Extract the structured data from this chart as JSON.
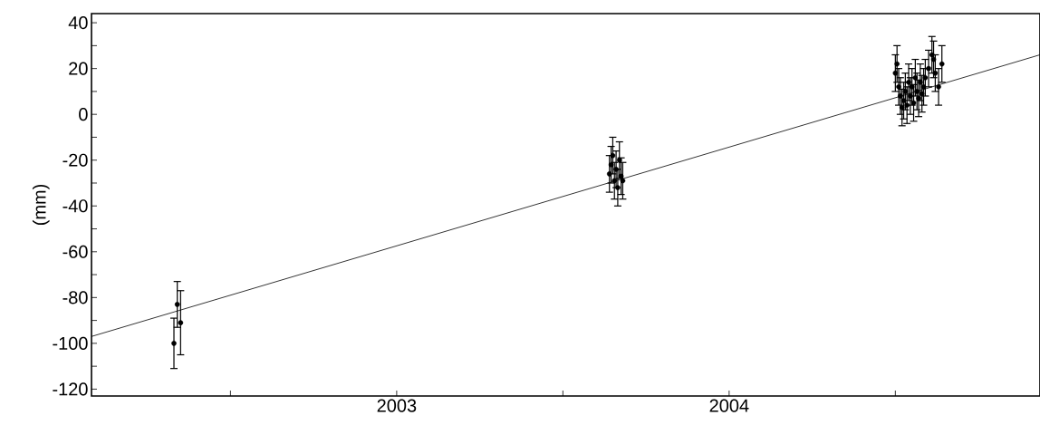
{
  "chart_data": {
    "type": "scatter",
    "ylabel": "(mm)",
    "xlim": [
      2002.082,
      2004.935
    ],
    "ylim": [
      -123,
      44
    ],
    "xticks": [
      {
        "value": 2002.5,
        "label": null
      },
      2003,
      {
        "value": 2003.5,
        "label": null
      },
      2004,
      {
        "value": 2004.5,
        "label": null
      }
    ],
    "yticks": [
      -120,
      {
        "value": -110,
        "label": null
      },
      -100,
      {
        "value": -90,
        "label": null
      },
      -80,
      {
        "value": -70,
        "label": null
      },
      -60,
      {
        "value": -50,
        "label": null
      },
      -40,
      {
        "value": -30,
        "label": null
      },
      -20,
      {
        "value": -10,
        "label": null
      },
      0,
      {
        "value": 10,
        "label": null
      },
      20,
      {
        "value": 30,
        "label": null
      },
      40
    ],
    "series": [
      {
        "color": "#000000",
        "marker": "circle",
        "x": [
          2002.33,
          2002.34,
          2002.35,
          2003.64,
          2003.645,
          2003.65,
          2003.655,
          2003.66,
          2003.665,
          2003.67,
          2003.675,
          2003.68,
          2004.5,
          2004.505,
          2004.51,
          2004.515,
          2004.52,
          2004.525,
          2004.53,
          2004.535,
          2004.54,
          2004.545,
          2004.55,
          2004.555,
          2004.56,
          2004.565,
          2004.57,
          2004.575,
          2004.58,
          2004.585,
          2004.59,
          2004.6,
          2004.61,
          2004.615,
          2004.62,
          2004.63,
          2004.64
        ],
        "values": [
          -100,
          -83,
          -91,
          -26,
          -22,
          -18,
          -29,
          -24,
          -32,
          -20,
          -27,
          -29,
          18,
          22,
          12,
          8,
          3,
          6,
          10,
          4,
          14,
          8,
          12,
          5,
          16,
          10,
          7,
          14,
          9,
          12,
          16,
          20,
          26,
          24,
          18,
          12,
          22
        ],
        "errors": [
          11,
          10,
          14,
          8,
          8,
          8,
          8,
          8,
          8,
          8,
          8,
          8,
          8,
          8,
          8,
          8,
          8,
          8,
          8,
          8,
          8,
          8,
          8,
          8,
          8,
          8,
          8,
          8,
          8,
          8,
          8,
          8,
          8,
          8,
          8,
          8,
          8
        ]
      },
      {
        "type": "line",
        "marker": "none",
        "color": "#000000",
        "x": [
          2002.082,
          2004.935
        ],
        "values": [
          -97,
          26
        ]
      }
    ]
  }
}
